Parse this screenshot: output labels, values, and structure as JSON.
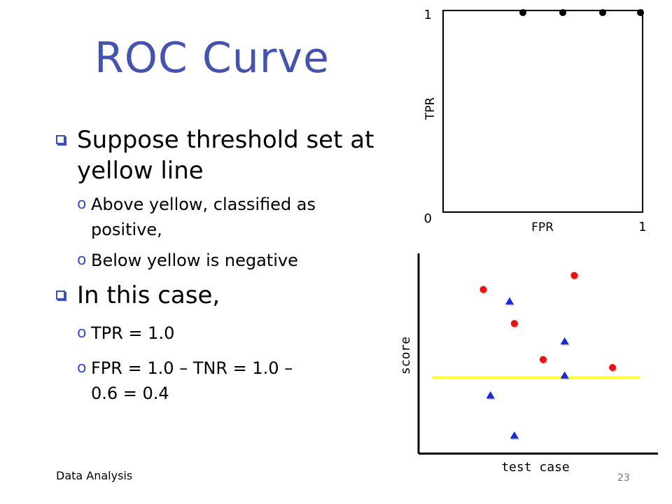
{
  "title": "ROC Curve",
  "bullets": [
    {
      "text": "Suppose threshold set at yellow line",
      "sub": [
        "Above yellow, classified as positive,",
        "Below yellow is negative"
      ]
    },
    {
      "text": "In this case,",
      "sub": [
        "TPR = 1.0",
        "FPR = 1.0 – TNR = 1.0 – 0.6 = 0.4"
      ]
    }
  ],
  "footer": "Data Analysis",
  "page_number": "23",
  "sub_marker": "o",
  "chart_data": [
    {
      "type": "scatter",
      "ylabel": "TPR",
      "xlabel": "FPR",
      "tick_labels": {
        "y_top": "1",
        "y_bottom": "0",
        "x_right": "1"
      },
      "xlim": [
        0,
        1
      ],
      "ylim": [
        0,
        1
      ],
      "points": [
        {
          "x": 0.4,
          "y": 1.0
        },
        {
          "x": 0.6,
          "y": 1.0
        },
        {
          "x": 0.8,
          "y": 1.0
        },
        {
          "x": 1.0,
          "y": 1.0
        }
      ],
      "point_color": "#000000"
    },
    {
      "type": "scatter",
      "xlabel": "test case",
      "ylabel": "score",
      "threshold": {
        "value": 0.38,
        "color": "#ffff33"
      },
      "positive_color": "#ee1111",
      "negative_color": "#1a2ad6",
      "positives": [
        {
          "x": 0.27,
          "y": 0.82
        },
        {
          "x": 0.4,
          "y": 0.65
        },
        {
          "x": 0.52,
          "y": 0.47
        },
        {
          "x": 0.65,
          "y": 0.89
        },
        {
          "x": 0.81,
          "y": 0.43
        }
      ],
      "negatives": [
        {
          "x": 0.38,
          "y": 0.76
        },
        {
          "x": 0.61,
          "y": 0.56
        },
        {
          "x": 0.3,
          "y": 0.29
        },
        {
          "x": 0.61,
          "y": 0.39
        },
        {
          "x": 0.4,
          "y": 0.09
        }
      ]
    }
  ]
}
